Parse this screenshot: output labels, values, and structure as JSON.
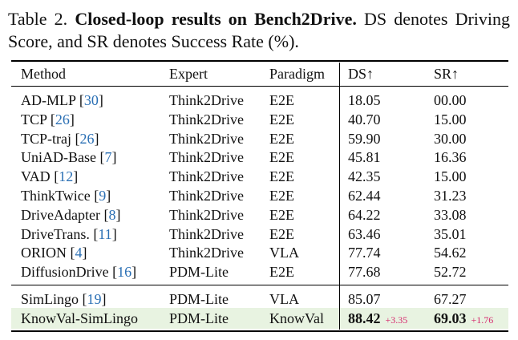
{
  "caption": {
    "label": "Table 2.",
    "title": "Closed-loop results on Bench2Drive.",
    "text": "DS denotes Driving Score, and SR denotes Success Rate (%)."
  },
  "table": {
    "headers": [
      "Method",
      "Expert",
      "Paradigm",
      "DS↑",
      "SR↑"
    ],
    "group1": [
      {
        "method": "AD-MLP",
        "cite": "30",
        "expert": "Think2Drive",
        "paradigm": "E2E",
        "ds": "18.05",
        "sr": "00.00"
      },
      {
        "method": "TCP",
        "cite": "26",
        "expert": "Think2Drive",
        "paradigm": "E2E",
        "ds": "40.70",
        "sr": "15.00"
      },
      {
        "method": "TCP-traj",
        "cite": "26",
        "expert": "Think2Drive",
        "paradigm": "E2E",
        "ds": "59.90",
        "sr": "30.00"
      },
      {
        "method": "UniAD-Base",
        "cite": "7",
        "expert": "Think2Drive",
        "paradigm": "E2E",
        "ds": "45.81",
        "sr": "16.36"
      },
      {
        "method": "VAD",
        "cite": "12",
        "expert": "Think2Drive",
        "paradigm": "E2E",
        "ds": "42.35",
        "sr": "15.00"
      },
      {
        "method": "ThinkTwice",
        "cite": "9",
        "expert": "Think2Drive",
        "paradigm": "E2E",
        "ds": "62.44",
        "sr": "31.23"
      },
      {
        "method": "DriveAdapter",
        "cite": "8",
        "expert": "Think2Drive",
        "paradigm": "E2E",
        "ds": "64.22",
        "sr": "33.08"
      },
      {
        "method": "DriveTrans.",
        "cite": "11",
        "expert": "Think2Drive",
        "paradigm": "E2E",
        "ds": "63.46",
        "sr": "35.01"
      },
      {
        "method": "ORION",
        "cite": "4",
        "expert": "Think2Drive",
        "paradigm": "VLA",
        "ds": "77.74",
        "sr": "54.62"
      },
      {
        "method": "DiffusionDrive",
        "cite": "16",
        "expert": "PDM-Lite",
        "paradigm": "E2E",
        "ds": "77.68",
        "sr": "52.72"
      }
    ],
    "group2": [
      {
        "method": "SimLingo",
        "cite": "19",
        "expert": "PDM-Lite",
        "paradigm": "VLA",
        "ds": "85.07",
        "sr": "67.27"
      }
    ],
    "ours": {
      "method": "KnowVal-SimLingo",
      "expert": "PDM-Lite",
      "paradigm": "KnowVal",
      "ds": "88.42",
      "ds_delta": "+3.35",
      "sr": "69.03",
      "sr_delta": "+1.76"
    },
    "colors": {
      "highlight": "#e8f3e1",
      "citation": "#2a6fb4",
      "delta": "#d6286d"
    }
  }
}
